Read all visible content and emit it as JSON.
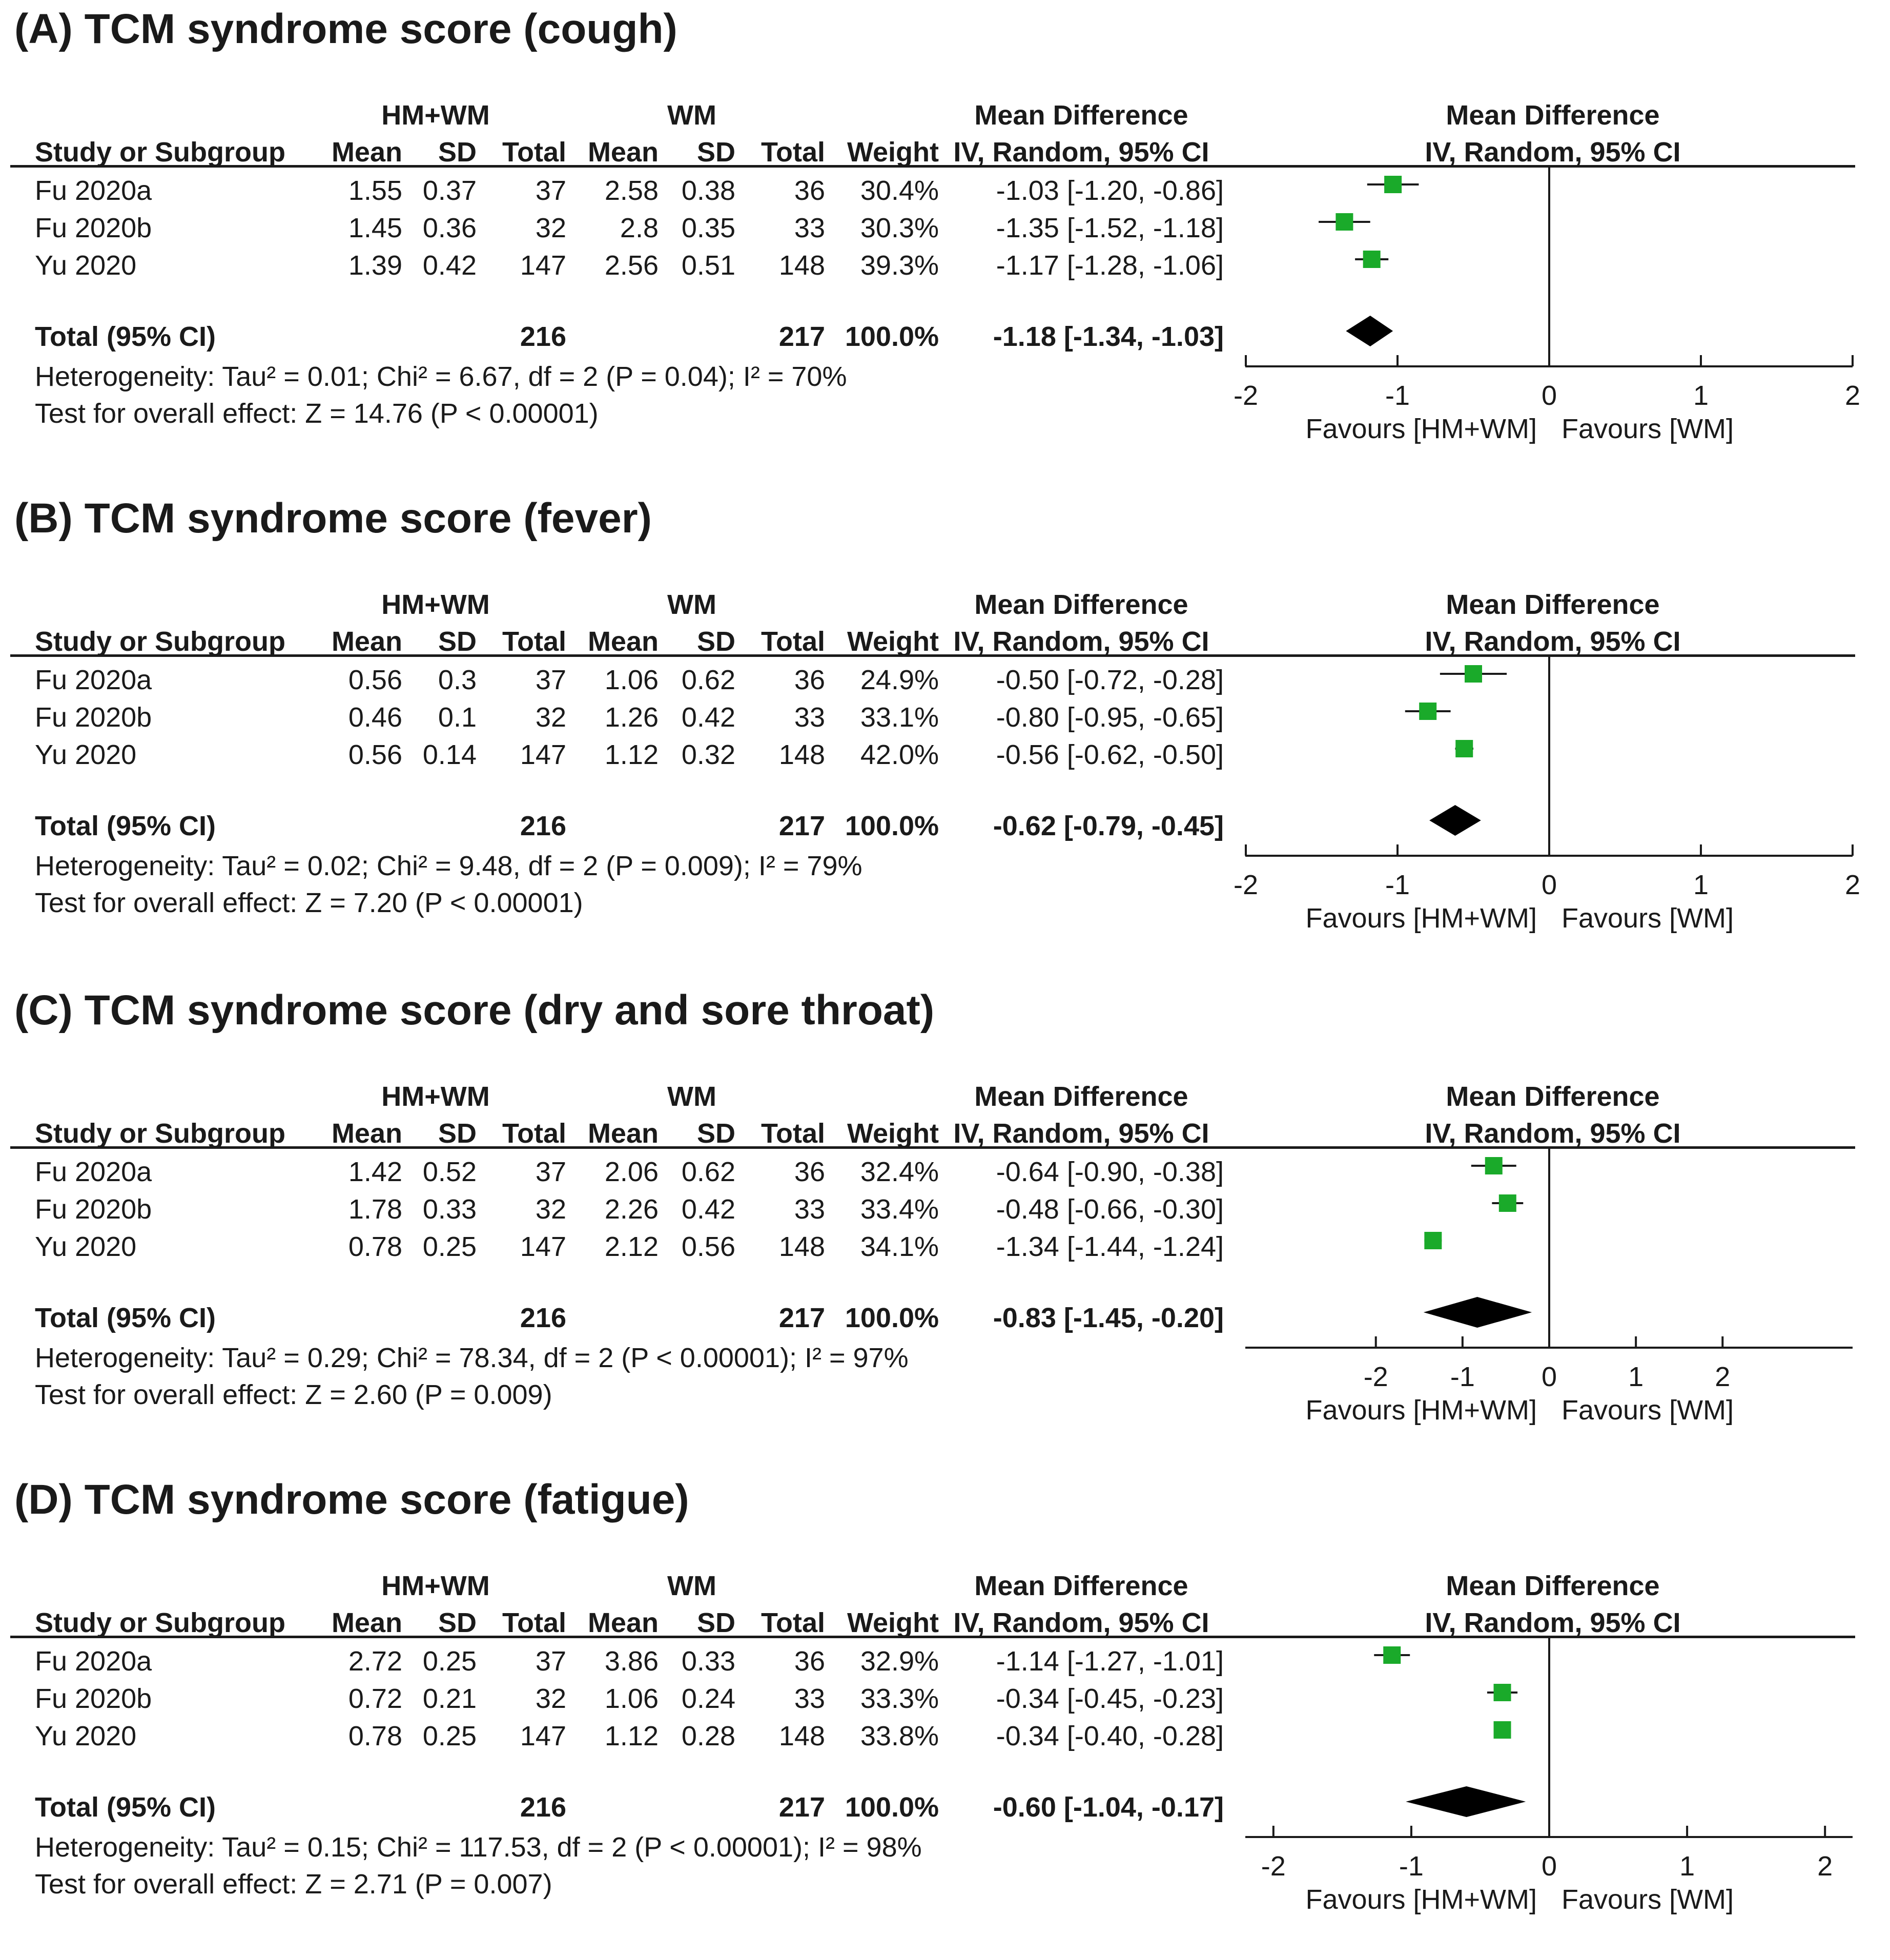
{
  "header": {
    "group1": "HM+WM",
    "group2": "WM",
    "md_header1": "Mean Difference",
    "md_header2": "IV, Random, 95% CI",
    "col_study": "Study or Subgroup",
    "col_mean": "Mean",
    "col_sd": "SD",
    "col_total": "Total",
    "col_weight": "Weight",
    "favours_left": "Favours [HM+WM]",
    "favours_right": "Favours [WM]"
  },
  "colors": {
    "point": "#1aaa2a",
    "diamond": "#000000",
    "text": "#1a1a1a"
  },
  "chart_data": [
    {
      "type": "forest",
      "title": "(A) TCM syndrome score (cough)",
      "studies": [
        {
          "name": "Fu 2020a",
          "mean1": "1.55",
          "sd1": "0.37",
          "n1": "37",
          "mean2": "2.58",
          "sd2": "0.38",
          "n2": "36",
          "weight": "30.4%",
          "ci_text": "-1.03 [-1.20, -0.86]",
          "est": -1.03,
          "lo": -1.2,
          "hi": -0.86
        },
        {
          "name": "Fu 2020b",
          "mean1": "1.45",
          "sd1": "0.36",
          "n1": "32",
          "mean2": "2.8",
          "sd2": "0.35",
          "n2": "33",
          "weight": "30.3%",
          "ci_text": "-1.35 [-1.52, -1.18]",
          "est": -1.35,
          "lo": -1.52,
          "hi": -1.18
        },
        {
          "name": "Yu 2020",
          "mean1": "1.39",
          "sd1": "0.42",
          "n1": "147",
          "mean2": "2.56",
          "sd2": "0.51",
          "n2": "148",
          "weight": "39.3%",
          "ci_text": "-1.17 [-1.28, -1.06]",
          "est": -1.17,
          "lo": -1.28,
          "hi": -1.06
        }
      ],
      "total": {
        "label": "Total (95% CI)",
        "n1": "216",
        "n2": "217",
        "weight": "100.0%",
        "ci_text": "-1.18 [-1.34, -1.03]",
        "est": -1.18,
        "lo": -1.34,
        "hi": -1.03
      },
      "heterogeneity": "Heterogeneity: Tau² = 0.01; Chi² = 6.67, df = 2 (P = 0.04); I² = 70%",
      "overall": "Test for overall effect: Z = 14.76 (P < 0.00001)",
      "xlim": [
        -2,
        2
      ],
      "ticks": [
        -2,
        -1,
        0,
        1,
        2
      ]
    },
    {
      "type": "forest",
      "title": "(B) TCM syndrome score (fever)",
      "studies": [
        {
          "name": "Fu 2020a",
          "mean1": "0.56",
          "sd1": "0.3",
          "n1": "37",
          "mean2": "1.06",
          "sd2": "0.62",
          "n2": "36",
          "weight": "24.9%",
          "ci_text": "-0.50 [-0.72, -0.28]",
          "est": -0.5,
          "lo": -0.72,
          "hi": -0.28
        },
        {
          "name": "Fu 2020b",
          "mean1": "0.46",
          "sd1": "0.1",
          "n1": "32",
          "mean2": "1.26",
          "sd2": "0.42",
          "n2": "33",
          "weight": "33.1%",
          "ci_text": "-0.80 [-0.95, -0.65]",
          "est": -0.8,
          "lo": -0.95,
          "hi": -0.65
        },
        {
          "name": "Yu 2020",
          "mean1": "0.56",
          "sd1": "0.14",
          "n1": "147",
          "mean2": "1.12",
          "sd2": "0.32",
          "n2": "148",
          "weight": "42.0%",
          "ci_text": "-0.56 [-0.62, -0.50]",
          "est": -0.56,
          "lo": -0.62,
          "hi": -0.5
        }
      ],
      "total": {
        "label": "Total (95% CI)",
        "n1": "216",
        "n2": "217",
        "weight": "100.0%",
        "ci_text": "-0.62 [-0.79, -0.45]",
        "est": -0.62,
        "lo": -0.79,
        "hi": -0.45
      },
      "heterogeneity": "Heterogeneity: Tau² = 0.02; Chi² = 9.48, df = 2 (P = 0.009); I² = 79%",
      "overall": "Test for overall effect: Z = 7.20 (P < 0.00001)",
      "xlim": [
        -2,
        2
      ],
      "ticks": [
        -2,
        -1,
        0,
        1,
        2
      ]
    },
    {
      "type": "forest",
      "title": "(C) TCM syndrome score (dry and sore throat)",
      "studies": [
        {
          "name": "Fu 2020a",
          "mean1": "1.42",
          "sd1": "0.52",
          "n1": "37",
          "mean2": "2.06",
          "sd2": "0.62",
          "n2": "36",
          "weight": "32.4%",
          "ci_text": "-0.64 [-0.90, -0.38]",
          "est": -0.64,
          "lo": -0.9,
          "hi": -0.38
        },
        {
          "name": "Fu 2020b",
          "mean1": "1.78",
          "sd1": "0.33",
          "n1": "32",
          "mean2": "2.26",
          "sd2": "0.42",
          "n2": "33",
          "weight": "33.4%",
          "ci_text": "-0.48 [-0.66, -0.30]",
          "est": -0.48,
          "lo": -0.66,
          "hi": -0.3
        },
        {
          "name": "Yu 2020",
          "mean1": "0.78",
          "sd1": "0.25",
          "n1": "147",
          "mean2": "2.12",
          "sd2": "0.56",
          "n2": "148",
          "weight": "34.1%",
          "ci_text": "-1.34 [-1.44, -1.24]",
          "est": -1.34,
          "lo": -1.44,
          "hi": -1.24
        }
      ],
      "total": {
        "label": "Total (95% CI)",
        "n1": "216",
        "n2": "217",
        "weight": "100.0%",
        "ci_text": "-0.83 [-1.45, -0.20]",
        "est": -0.83,
        "lo": -1.45,
        "hi": -0.2
      },
      "heterogeneity": "Heterogeneity: Tau² = 0.29; Chi² = 78.34, df = 2 (P < 0.00001); I² = 97%",
      "overall": "Test for overall effect: Z = 2.60 (P = 0.009)",
      "xlim": [
        -3.5,
        3.5
      ],
      "ticks": [
        -2,
        -1,
        0,
        1,
        2
      ]
    },
    {
      "type": "forest",
      "title": "(D) TCM syndrome score (fatigue)",
      "studies": [
        {
          "name": "Fu 2020a",
          "mean1": "2.72",
          "sd1": "0.25",
          "n1": "37",
          "mean2": "3.86",
          "sd2": "0.33",
          "n2": "36",
          "weight": "32.9%",
          "ci_text": "-1.14 [-1.27, -1.01]",
          "est": -1.14,
          "lo": -1.27,
          "hi": -1.01
        },
        {
          "name": "Fu 2020b",
          "mean1": "0.72",
          "sd1": "0.21",
          "n1": "32",
          "mean2": "1.06",
          "sd2": "0.24",
          "n2": "33",
          "weight": "33.3%",
          "ci_text": "-0.34 [-0.45, -0.23]",
          "est": -0.34,
          "lo": -0.45,
          "hi": -0.23
        },
        {
          "name": "Yu 2020",
          "mean1": "0.78",
          "sd1": "0.25",
          "n1": "147",
          "mean2": "1.12",
          "sd2": "0.28",
          "n2": "148",
          "weight": "33.8%",
          "ci_text": "-0.34 [-0.40, -0.28]",
          "est": -0.34,
          "lo": -0.4,
          "hi": -0.28
        }
      ],
      "total": {
        "label": "Total (95% CI)",
        "n1": "216",
        "n2": "217",
        "weight": "100.0%",
        "ci_text": "-0.60 [-1.04, -0.17]",
        "est": -0.6,
        "lo": -1.04,
        "hi": -0.17
      },
      "heterogeneity": "Heterogeneity: Tau² = 0.15; Chi² = 117.53, df = 2 (P < 0.00001); I² = 98%",
      "overall": "Test for overall effect: Z = 2.71 (P = 0.007)",
      "xlim": [
        -2.2,
        2.2
      ],
      "ticks": [
        -2,
        -1,
        0,
        1,
        2
      ]
    }
  ]
}
